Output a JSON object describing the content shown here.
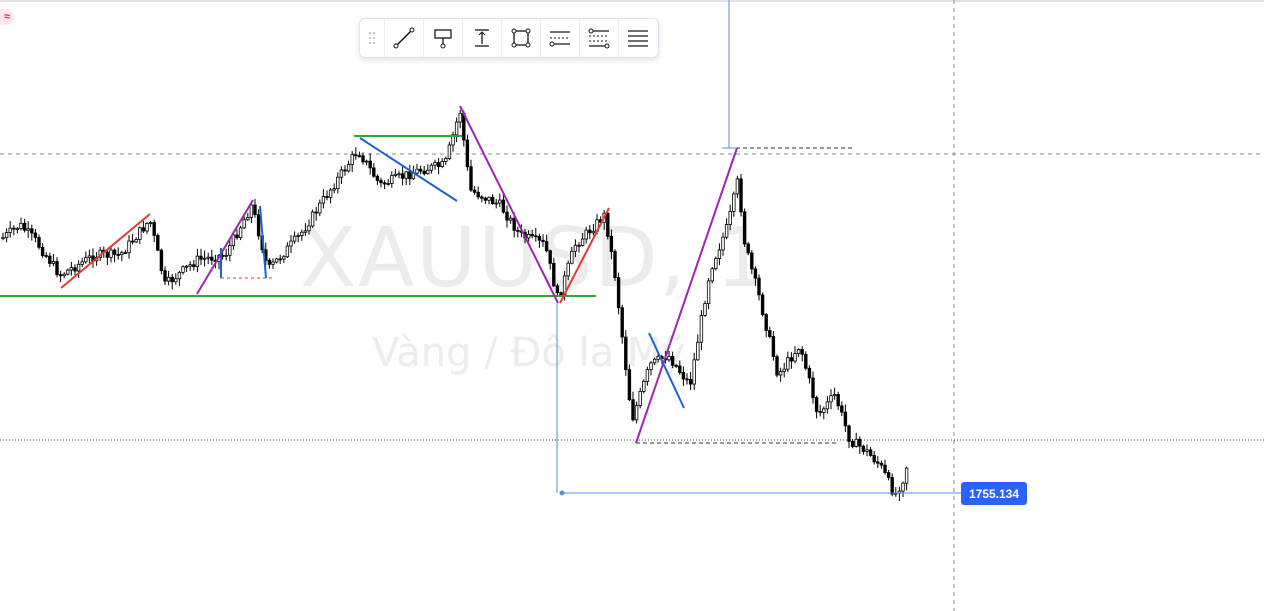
{
  "watermark": {
    "symbol": "XAUUSD, 1",
    "description": "Vàng / Đô la Mỹ"
  },
  "price_label": {
    "value": "1755.134",
    "color": "#2962ff"
  },
  "logo": {
    "glyph": "≈",
    "color": "#e91e63"
  },
  "toolbar": {
    "items": [
      {
        "name": "drag-handle",
        "icon": "grip-dots-icon"
      },
      {
        "name": "trend-line-tool",
        "icon": "trend-line-icon"
      },
      {
        "name": "price-note-tool",
        "icon": "signpost-icon"
      },
      {
        "name": "price-range-tool",
        "icon": "vertical-range-icon"
      },
      {
        "name": "rectangle-tool",
        "icon": "rectangle-icon"
      },
      {
        "name": "parallel-channel-tool",
        "icon": "channel-icon"
      },
      {
        "name": "fib-retracement-tool",
        "icon": "fib-levels-icon"
      },
      {
        "name": "horizontal-lines-tool",
        "icon": "horizontal-lines-icon"
      }
    ]
  },
  "colors": {
    "candle_up": "#ffffff",
    "candle_down": "#000000",
    "candle_outline": "#000000",
    "red_line": "#e53935",
    "blue_line": "#1e63d0",
    "purple_line": "#9c27b0",
    "green_line": "#2ea836",
    "measure_line": "#5b8fd8",
    "crosshair": "#555555"
  }
}
